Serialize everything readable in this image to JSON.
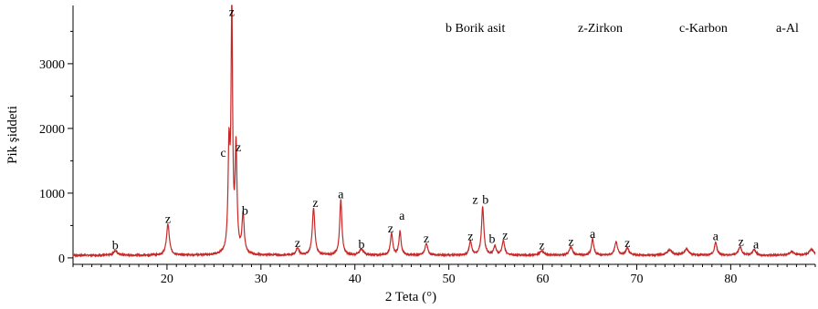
{
  "chart_data": {
    "type": "line",
    "title": "",
    "xlabel": "2 Teta (°)",
    "ylabel": "Pik şiddeti",
    "xlim": [
      10,
      89
    ],
    "ylim": [
      -100,
      3900
    ],
    "xticks": [
      20,
      30,
      40,
      50,
      60,
      70,
      80
    ],
    "yticks": [
      0,
      1000,
      2000,
      3000
    ],
    "grid": false,
    "line_color": "#c62828",
    "axis_color": "#000000",
    "baseline": 40,
    "peaks": [
      {
        "x": 14.5,
        "y": 70,
        "w": 0.25
      },
      {
        "x": 20.1,
        "y": 480,
        "w": 0.18
      },
      {
        "x": 26.6,
        "y": 1550,
        "w": 0.12
      },
      {
        "x": 26.9,
        "y": 3680,
        "w": 0.1
      },
      {
        "x": 27.35,
        "y": 1600,
        "w": 0.12
      },
      {
        "x": 28.1,
        "y": 610,
        "w": 0.14
      },
      {
        "x": 33.9,
        "y": 110,
        "w": 0.18
      },
      {
        "x": 35.6,
        "y": 730,
        "w": 0.16
      },
      {
        "x": 38.5,
        "y": 860,
        "w": 0.14
      },
      {
        "x": 40.7,
        "y": 90,
        "w": 0.25
      },
      {
        "x": 43.9,
        "y": 330,
        "w": 0.15
      },
      {
        "x": 44.8,
        "y": 360,
        "w": 0.14
      },
      {
        "x": 47.6,
        "y": 180,
        "w": 0.17
      },
      {
        "x": 52.3,
        "y": 210,
        "w": 0.16
      },
      {
        "x": 53.6,
        "y": 740,
        "w": 0.15
      },
      {
        "x": 54.9,
        "y": 130,
        "w": 0.17
      },
      {
        "x": 55.8,
        "y": 220,
        "w": 0.16
      },
      {
        "x": 59.9,
        "y": 70,
        "w": 0.25
      },
      {
        "x": 63.0,
        "y": 130,
        "w": 0.2
      },
      {
        "x": 65.3,
        "y": 250,
        "w": 0.15
      },
      {
        "x": 67.8,
        "y": 200,
        "w": 0.18
      },
      {
        "x": 69.0,
        "y": 110,
        "w": 0.2
      },
      {
        "x": 73.5,
        "y": 80,
        "w": 0.3
      },
      {
        "x": 75.3,
        "y": 90,
        "w": 0.3
      },
      {
        "x": 78.4,
        "y": 200,
        "w": 0.16
      },
      {
        "x": 81.0,
        "y": 130,
        "w": 0.2
      },
      {
        "x": 82.5,
        "y": 90,
        "w": 0.2
      },
      {
        "x": 86.5,
        "y": 50,
        "w": 0.3
      },
      {
        "x": 88.6,
        "y": 90,
        "w": 0.3
      }
    ],
    "annotations": [
      {
        "text": "b",
        "x": 14.5,
        "y": 130
      },
      {
        "text": "z",
        "x": 20.1,
        "y": 540
      },
      {
        "text": "z",
        "x": 26.9,
        "y": 3740
      },
      {
        "text": "c",
        "x": 26.0,
        "y": 1560
      },
      {
        "text": "z",
        "x": 27.6,
        "y": 1650
      },
      {
        "text": "b",
        "x": 28.3,
        "y": 670
      },
      {
        "text": "z",
        "x": 33.9,
        "y": 170
      },
      {
        "text": "z",
        "x": 35.8,
        "y": 790
      },
      {
        "text": "a",
        "x": 38.5,
        "y": 920
      },
      {
        "text": "b",
        "x": 40.7,
        "y": 150
      },
      {
        "text": "z",
        "x": 43.8,
        "y": 390
      },
      {
        "text": "a",
        "x": 45.0,
        "y": 590
      },
      {
        "text": "z",
        "x": 47.6,
        "y": 240
      },
      {
        "text": "z",
        "x": 52.3,
        "y": 270
      },
      {
        "text": "z",
        "x": 52.8,
        "y": 840
      },
      {
        "text": "b",
        "x": 53.9,
        "y": 840
      },
      {
        "text": "b",
        "x": 54.6,
        "y": 230
      },
      {
        "text": "z",
        "x": 56.0,
        "y": 290
      },
      {
        "text": "z",
        "x": 59.9,
        "y": 130
      },
      {
        "text": "z",
        "x": 63.0,
        "y": 190
      },
      {
        "text": "a",
        "x": 65.3,
        "y": 310
      },
      {
        "text": "z",
        "x": 69.0,
        "y": 170
      },
      {
        "text": "a",
        "x": 78.4,
        "y": 270
      },
      {
        "text": "z",
        "x": 81.1,
        "y": 190
      },
      {
        "text": "a",
        "x": 82.7,
        "y": 150
      }
    ],
    "legend": {
      "placement": "top-right",
      "entries": [
        "b Borik asit",
        "z-Zirkon",
        "c-Karbon",
        "a-Al"
      ]
    }
  }
}
